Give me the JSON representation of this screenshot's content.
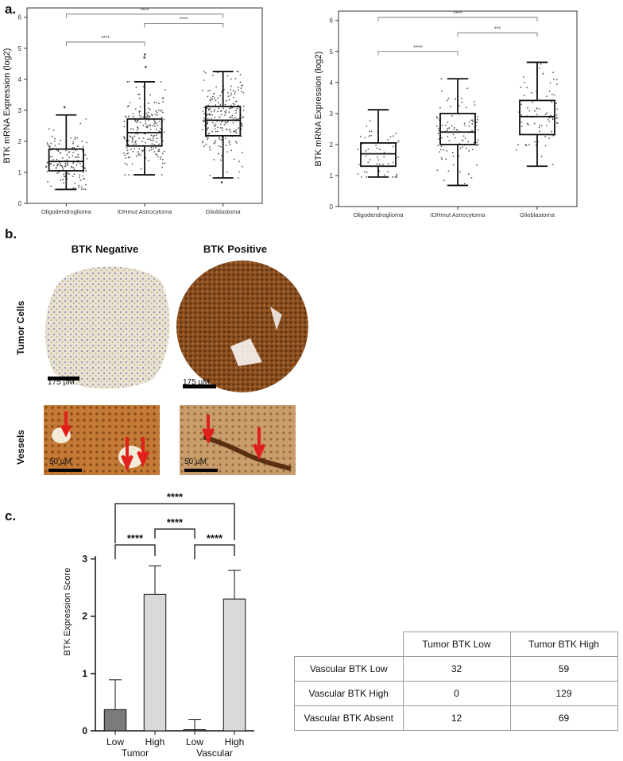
{
  "panels": {
    "a": "a.",
    "b": "b.",
    "c": "c."
  },
  "chart_data": [
    {
      "type": "box",
      "panel": "a-left",
      "ylabel": "BTK mRNA Expression (log2)",
      "ylim": [
        0,
        6.3
      ],
      "yticks": [
        "0",
        "1",
        "2",
        "3",
        "4",
        "5",
        "6"
      ],
      "categories": [
        "Oligodendroglioma",
        "IDHmut Astrocytoma",
        "Glioblastoma"
      ],
      "boxes": [
        {
          "min": 0.45,
          "q1": 1.05,
          "median": 1.35,
          "q3": 1.75,
          "max": 2.85,
          "n_points": 150,
          "outliers_high": [
            3.1
          ]
        },
        {
          "min": 0.92,
          "q1": 1.85,
          "median": 2.28,
          "q3": 2.72,
          "max": 3.92,
          "n_points": 210,
          "outliers_high": [
            4.4,
            4.7,
            4.8
          ]
        },
        {
          "min": 0.82,
          "q1": 2.18,
          "median": 2.68,
          "q3": 3.12,
          "max": 4.25,
          "n_points": 230,
          "outliers_low": [
            0.68
          ]
        }
      ],
      "significance": [
        {
          "from": 0,
          "to": 1,
          "y": 5.2,
          "label": "****"
        },
        {
          "from": 1,
          "to": 2,
          "y": 5.8,
          "label": "****"
        },
        {
          "from": 0,
          "to": 2,
          "y": 6.1,
          "label": "****"
        }
      ]
    },
    {
      "type": "box",
      "panel": "a-right",
      "ylabel": "BTK mRNA Expression (log2)",
      "ylim": [
        0,
        6.3
      ],
      "yticks": [
        "0",
        "1",
        "2",
        "3",
        "4",
        "5",
        "6"
      ],
      "categories": [
        "Oligodendroglioma",
        "IDHmut Astrocytoma",
        "Glioblastoma"
      ],
      "boxes": [
        {
          "min": 0.95,
          "q1": 1.3,
          "median": 1.7,
          "q3": 2.05,
          "max": 3.12,
          "n_points": 60,
          "outliers_high": []
        },
        {
          "min": 0.68,
          "q1": 2.0,
          "median": 2.4,
          "q3": 3.0,
          "max": 4.12,
          "n_points": 110,
          "outliers_high": []
        },
        {
          "min": 1.3,
          "q1": 2.32,
          "median": 2.9,
          "q3": 3.42,
          "max": 4.65,
          "n_points": 80,
          "outliers_high": []
        }
      ],
      "significance": [
        {
          "from": 0,
          "to": 1,
          "y": 5.0,
          "label": "****"
        },
        {
          "from": 1,
          "to": 2,
          "y": 5.6,
          "label": "***"
        },
        {
          "from": 0,
          "to": 2,
          "y": 6.1,
          "label": "****"
        }
      ]
    },
    {
      "type": "bar",
      "panel": "c",
      "ylabel": "BTK Expression Score",
      "ylim": [
        0,
        3.05
      ],
      "yticks": [
        "0",
        "1",
        "2",
        "3"
      ],
      "categories": [
        "Low",
        "High",
        "Low",
        "High"
      ],
      "groups": [
        "Tumor",
        "Vascular"
      ],
      "values": [
        0.37,
        2.38,
        0.02,
        2.3
      ],
      "errors": [
        0.52,
        0.5,
        0.18,
        0.5
      ],
      "bar_colors": [
        "#7b7b7b",
        "#d9d9d9",
        "#7b7b7b",
        "#d9d9d9"
      ],
      "significance": [
        {
          "from": 0,
          "to": 1,
          "label": "****"
        },
        {
          "from": 1,
          "to": 2,
          "label": "****"
        },
        {
          "from": 2,
          "to": 3,
          "label": "****"
        },
        {
          "from": 0,
          "to": 3,
          "label": "****"
        }
      ]
    }
  ],
  "micrographs": {
    "col_negative": "BTK Negative",
    "col_positive": "BTK Positive",
    "row_tumor": "Tumor Cells",
    "row_vessels": "Vessels",
    "scale_tumor": "175 µM",
    "scale_vessels": "50 µM"
  },
  "table": {
    "headers": [
      "",
      "Tumor BTK Low",
      "Tumor BTK High"
    ],
    "rows": [
      [
        "Vascular BTK Low",
        "32",
        "59"
      ],
      [
        "Vascular BTK High",
        "0",
        "129"
      ],
      [
        "Vascular BTK Absent",
        "12",
        "69"
      ]
    ]
  }
}
